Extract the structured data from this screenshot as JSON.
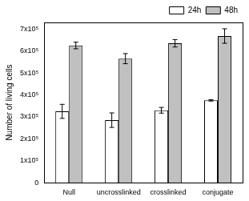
{
  "chart_data": {
    "type": "bar",
    "y_label": "Number of living cells",
    "categories": [
      "Null",
      "uncrosslinked",
      "crosslinked",
      "conjugate"
    ],
    "series": [
      {
        "name": "24h",
        "color": "#ffffff",
        "values": [
          325000,
          285000,
          330000,
          375000
        ],
        "errors": [
          32000,
          33000,
          13000,
          3000
        ]
      },
      {
        "name": "48h",
        "color": "#c0c0c0",
        "values": [
          625000,
          565000,
          635000,
          668000
        ],
        "errors": [
          15000,
          23000,
          17000,
          33000
        ]
      }
    ],
    "ylim": [
      0,
      730000
    ],
    "yticks": [
      0,
      {
        "value": 100000,
        "label": "1x10⁵"
      },
      {
        "value": 200000,
        "label": "2x10⁵"
      },
      {
        "value": 300000,
        "label": "3x10⁵"
      },
      {
        "value": 400000,
        "label": "4x10⁵"
      },
      {
        "value": 500000,
        "label": "5x10⁵"
      },
      {
        "value": 600000,
        "label": "6x10⁵"
      },
      {
        "value": 700000,
        "label": "7x10⁵"
      }
    ],
    "grid": false,
    "legend": "upper right"
  }
}
